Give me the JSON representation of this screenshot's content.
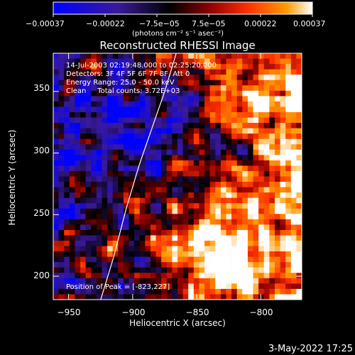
{
  "chart_data": {
    "type": "heatmap",
    "title": "Reconstructed RHESSI Image",
    "xlabel": "Heliocentric X (arcsec)",
    "ylabel": "Heliocentric Y (arcsec)",
    "xlim": [
      -962,
      -768
    ],
    "ylim": [
      181,
      381
    ],
    "x_ticks": [
      -950,
      -900,
      -850,
      -800
    ],
    "y_ticks": [
      200,
      250,
      300,
      350
    ],
    "x_tick_labels": [
      "−950",
      "−900",
      "−850",
      "−800"
    ],
    "y_tick_labels": [
      "200",
      "250",
      "300",
      "350"
    ],
    "colorbar": {
      "ticks": [
        "−0.00037",
        "−0.00022",
        "−7.5e−05",
        "7.5e−05",
        "0.00022",
        "0.00037"
      ],
      "unit": "(photons cm⁻² s⁻¹ asec⁻²)",
      "range": [
        -0.00037,
        0.00037
      ],
      "stops": [
        "#0000ff",
        "#3a1a9a",
        "#000000",
        "#8a0000",
        "#ff3000",
        "#ff9a00",
        "#ffffff"
      ]
    },
    "annotations": {
      "time": "14-Jul-2003 02:19:48.000 to 02:25:20.000",
      "detectors": "Detectors: 3F 4F 5F 6F 7F 8F, Att 0",
      "energy": "Energy Range: 25.0 - 50.0 keV",
      "clean": "Clean     Total counts: 3.72E+03",
      "peak": "Position of Peak = [-823,227]"
    },
    "limb_curve": [
      [
        -925,
        181
      ],
      [
        -915,
        215
      ],
      [
        -905,
        255
      ],
      [
        -895,
        290
      ],
      [
        -885,
        320
      ],
      [
        -875,
        350
      ],
      [
        -866,
        381
      ]
    ]
  },
  "footer": {
    "date": "3-May-2022 17:25"
  }
}
